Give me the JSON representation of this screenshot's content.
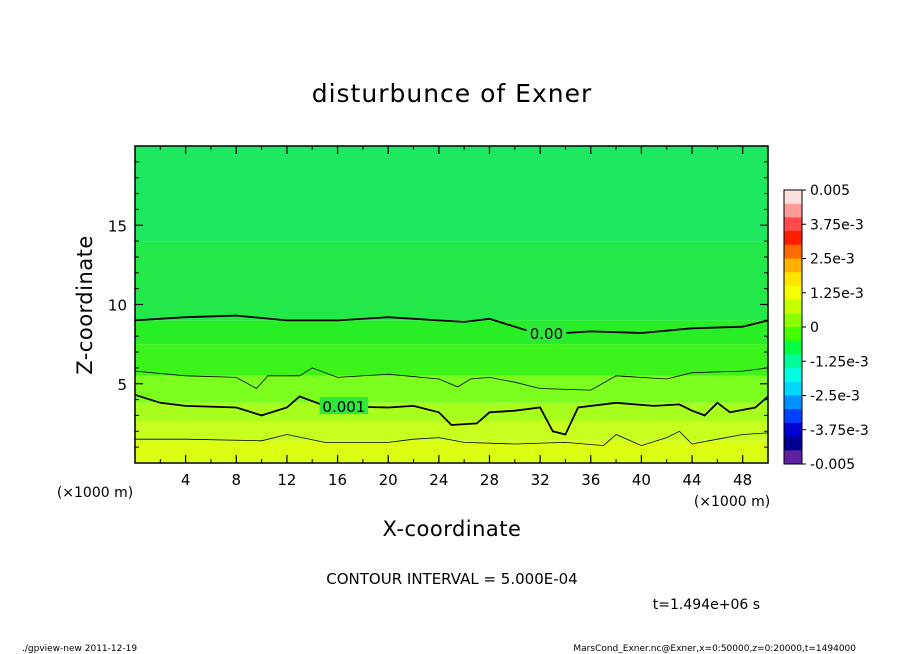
{
  "chart_data": {
    "type": "heatmap",
    "title": "disturbunce of Exner",
    "xlabel": "X-coordinate",
    "ylabel": "Z-coordinate",
    "x_unit": "(×1000 m)",
    "y_unit": "(×1000 m)",
    "xlim": [
      0,
      50
    ],
    "ylim": [
      0,
      20
    ],
    "x_ticks": [
      "4",
      "8",
      "12",
      "16",
      "20",
      "24",
      "28",
      "32",
      "36",
      "40",
      "44",
      "48"
    ],
    "y_ticks": [
      "5",
      "10",
      "15"
    ],
    "contour_labels": [
      {
        "text": "0.00",
        "x": 32.5,
        "z": 8.2
      },
      {
        "text": "0.001",
        "x": 16.5,
        "z": 3.6
      }
    ],
    "contour_levels": [
      {
        "value": 0.0,
        "points": [
          [
            0,
            9.0
          ],
          [
            4,
            9.2
          ],
          [
            8,
            9.3
          ],
          [
            12,
            9.0
          ],
          [
            16,
            9.0
          ],
          [
            20,
            9.2
          ],
          [
            24,
            9.0
          ],
          [
            26,
            8.9
          ],
          [
            28,
            9.1
          ],
          [
            30,
            8.6
          ],
          [
            32,
            8.1
          ],
          [
            36,
            8.3
          ],
          [
            40,
            8.2
          ],
          [
            44,
            8.5
          ],
          [
            48,
            8.6
          ],
          [
            50,
            9.0
          ]
        ]
      },
      {
        "value": 0.0005,
        "points": [
          [
            0,
            5.8
          ],
          [
            4,
            5.5
          ],
          [
            8,
            5.4
          ],
          [
            9.6,
            4.7
          ],
          [
            10.5,
            5.5
          ],
          [
            13,
            5.5
          ],
          [
            14,
            6.0
          ],
          [
            16,
            5.4
          ],
          [
            20,
            5.6
          ],
          [
            24,
            5.3
          ],
          [
            25.5,
            4.8
          ],
          [
            26.5,
            5.3
          ],
          [
            28,
            5.4
          ],
          [
            30,
            5.1
          ],
          [
            32,
            4.7
          ],
          [
            36,
            4.6
          ],
          [
            38,
            5.5
          ],
          [
            42,
            5.3
          ],
          [
            44,
            5.7
          ],
          [
            48,
            5.8
          ],
          [
            50,
            6.0
          ]
        ]
      },
      {
        "value": 0.001,
        "points": [
          [
            0,
            4.3
          ],
          [
            2,
            3.8
          ],
          [
            4,
            3.6
          ],
          [
            8,
            3.5
          ],
          [
            10,
            3.0
          ],
          [
            12,
            3.5
          ],
          [
            13,
            4.2
          ],
          [
            15,
            3.6
          ],
          [
            20,
            3.5
          ],
          [
            22,
            3.6
          ],
          [
            24,
            3.2
          ],
          [
            25,
            2.4
          ],
          [
            27,
            2.5
          ],
          [
            28,
            3.2
          ],
          [
            30,
            3.3
          ],
          [
            32,
            3.5
          ],
          [
            33,
            2.0
          ],
          [
            34,
            1.8
          ],
          [
            35,
            3.5
          ],
          [
            38,
            3.8
          ],
          [
            41,
            3.6
          ],
          [
            43,
            3.7
          ],
          [
            44,
            3.3
          ],
          [
            45,
            3.0
          ],
          [
            46,
            3.8
          ],
          [
            47,
            3.2
          ],
          [
            49,
            3.5
          ],
          [
            50,
            4.2
          ]
        ]
      },
      {
        "value": 0.0015,
        "points": [
          [
            0,
            1.5
          ],
          [
            4,
            1.5
          ],
          [
            10,
            1.4
          ],
          [
            12,
            1.8
          ],
          [
            15,
            1.3
          ],
          [
            20,
            1.3
          ],
          [
            22,
            1.5
          ],
          [
            24,
            1.6
          ],
          [
            26,
            1.3
          ],
          [
            30,
            1.2
          ],
          [
            34,
            1.3
          ],
          [
            37,
            1.1
          ],
          [
            38,
            1.8
          ],
          [
            40,
            1.1
          ],
          [
            42,
            1.6
          ],
          [
            43,
            2.0
          ],
          [
            44,
            1.2
          ],
          [
            46,
            1.5
          ],
          [
            48,
            1.8
          ],
          [
            50,
            1.9
          ]
        ]
      }
    ],
    "colorbar": {
      "labels": [
        "0.005",
        "3.75e-3",
        "2.5e-3",
        "1.25e-3",
        "0",
        "-1.25e-3",
        "-2.5e-3",
        "-3.75e-3",
        "-0.005"
      ],
      "colors": [
        "#ffe0e0",
        "#ff9a9a",
        "#ff4a4a",
        "#ff1e00",
        "#ff6a00",
        "#ffb000",
        "#ffe400",
        "#f2ff00",
        "#c8ff00",
        "#8cff00",
        "#44ff00",
        "#00ff40",
        "#00ff9a",
        "#00ffe0",
        "#00d8ff",
        "#0090ff",
        "#0040ff",
        "#0000d0",
        "#000090",
        "#6020a0"
      ]
    },
    "fill_bands": [
      {
        "z0": 0,
        "z1": 1.4,
        "color": "#dcff14"
      },
      {
        "z0": 1.4,
        "z1": 2.6,
        "color": "#c8ff1e"
      },
      {
        "z0": 2.6,
        "z1": 3.8,
        "color": "#a8ff1e"
      },
      {
        "z0": 3.8,
        "z1": 5.5,
        "color": "#7cff1e"
      },
      {
        "z0": 5.5,
        "z1": 7.5,
        "color": "#3cf41a"
      },
      {
        "z0": 7.5,
        "z1": 9.0,
        "color": "#28ee26"
      },
      {
        "z0": 9.0,
        "z1": 14.0,
        "color": "#22e84a"
      },
      {
        "z0": 14.0,
        "z1": 20.0,
        "color": "#1ee860"
      }
    ]
  },
  "annotations": {
    "contour_interval": "CONTOUR INTERVAL = 5.000E-04",
    "time": "t=1.494e+06 s",
    "footer_left": "./gpview-new  2011-12-19",
    "footer_right": "MarsCond_Exner.nc@Exner,x=0:50000,z=0:20000,t=1494000"
  }
}
